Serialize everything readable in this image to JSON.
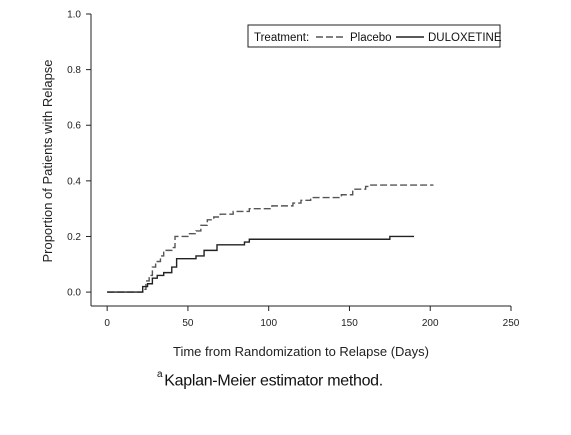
{
  "chart_data": {
    "type": "line",
    "subtype": "step (Kaplan-Meier)",
    "xlabel": "Time from Randomization to Relapse (Days)",
    "ylabel": "Proportion of Patients with Relapse",
    "xlim": [
      -10,
      250
    ],
    "ylim": [
      -0.05,
      1.0
    ],
    "x_ticks": [
      0,
      50,
      100,
      150,
      200,
      250
    ],
    "y_ticks": [
      "0.0",
      "0.2",
      "0.4",
      "0.6",
      "0.8",
      "1.0"
    ],
    "grid": false,
    "legend": {
      "placement": "top-right",
      "title": "Treatment:",
      "entries": [
        "Placebo",
        "DULOXETINE"
      ]
    },
    "series": [
      {
        "name": "Placebo",
        "style": "dashed",
        "color": "#555555",
        "points": [
          [
            0,
            0.0
          ],
          [
            20,
            0.0
          ],
          [
            22,
            0.01
          ],
          [
            24,
            0.04
          ],
          [
            26,
            0.06
          ],
          [
            28,
            0.09
          ],
          [
            30,
            0.11
          ],
          [
            33,
            0.13
          ],
          [
            35,
            0.15
          ],
          [
            40,
            0.16
          ],
          [
            42,
            0.2
          ],
          [
            50,
            0.21
          ],
          [
            55,
            0.22
          ],
          [
            58,
            0.24
          ],
          [
            62,
            0.26
          ],
          [
            66,
            0.27
          ],
          [
            70,
            0.28
          ],
          [
            78,
            0.29
          ],
          [
            88,
            0.3
          ],
          [
            102,
            0.31
          ],
          [
            115,
            0.32
          ],
          [
            120,
            0.33
          ],
          [
            126,
            0.34
          ],
          [
            145,
            0.35
          ],
          [
            152,
            0.37
          ],
          [
            160,
            0.38
          ],
          [
            162,
            0.385
          ],
          [
            202,
            0.385
          ]
        ]
      },
      {
        "name": "DULOXETINE",
        "style": "solid",
        "color": "#222222",
        "points": [
          [
            0,
            0.0
          ],
          [
            20,
            0.0
          ],
          [
            22,
            0.02
          ],
          [
            25,
            0.03
          ],
          [
            28,
            0.05
          ],
          [
            31,
            0.06
          ],
          [
            35,
            0.07
          ],
          [
            40,
            0.09
          ],
          [
            43,
            0.12
          ],
          [
            55,
            0.13
          ],
          [
            60,
            0.15
          ],
          [
            68,
            0.17
          ],
          [
            85,
            0.18
          ],
          [
            88,
            0.19
          ],
          [
            175,
            0.2
          ],
          [
            190,
            0.2
          ]
        ]
      }
    ]
  },
  "footnote": {
    "marker": "a",
    "text": "Kaplan-Meier estimator method."
  }
}
